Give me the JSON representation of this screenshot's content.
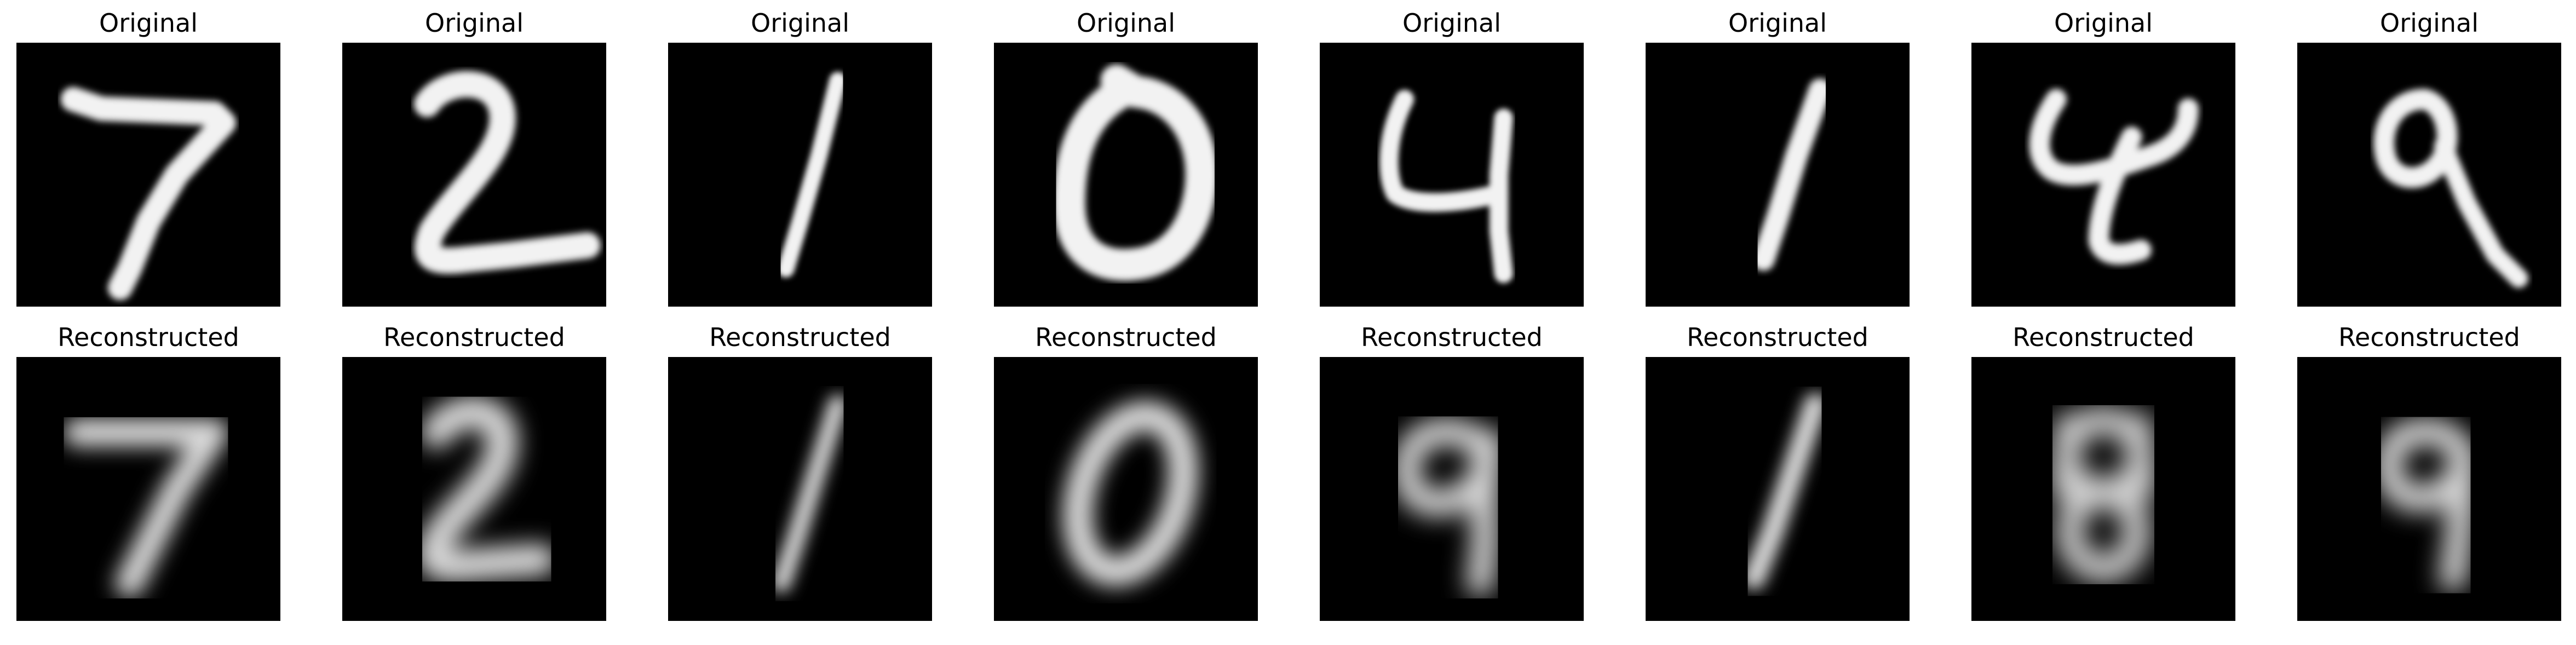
{
  "figure": {
    "original_title": "Original",
    "reconstructed_title": "Reconstructed"
  },
  "samples": [
    {
      "original_digit": "7",
      "reconstructed_digit": "7"
    },
    {
      "original_digit": "2",
      "reconstructed_digit": "2"
    },
    {
      "original_digit": "1",
      "reconstructed_digit": "1"
    },
    {
      "original_digit": "0",
      "reconstructed_digit": "0"
    },
    {
      "original_digit": "4",
      "reconstructed_digit": "9"
    },
    {
      "original_digit": "1",
      "reconstructed_digit": "1"
    },
    {
      "original_digit": "4",
      "reconstructed_digit": "8"
    },
    {
      "original_digit": "9",
      "reconstructed_digit": "9"
    }
  ],
  "colors": {
    "background": "#ffffff",
    "panel": "#000000",
    "stroke": "#f2f2f2"
  }
}
